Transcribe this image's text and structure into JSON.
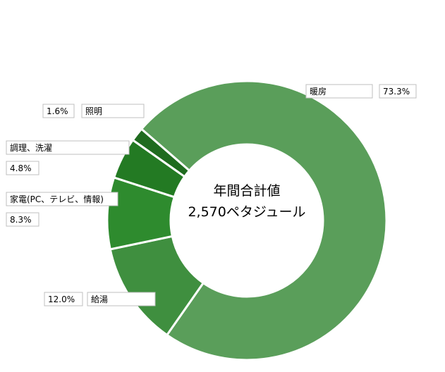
{
  "chart_data": {
    "type": "pie",
    "donut": true,
    "title": "",
    "center_label": {
      "line1": "年間合計値",
      "line2": "2,570ペタジュール"
    },
    "series": [
      {
        "name": "暖房",
        "value": 73.3,
        "value_label": "73.3%",
        "color": "#5a9e5a"
      },
      {
        "name": "給湯",
        "value": 12.0,
        "value_label": "12.0%",
        "color": "#3f8f3f"
      },
      {
        "name": "家電(PC、テレビ、情報)",
        "value": 8.3,
        "value_label": "8.3%",
        "color": "#2e8b2e"
      },
      {
        "name": "調理、洗濯",
        "value": 4.8,
        "value_label": "4.8%",
        "color": "#237a23"
      },
      {
        "name": "照明",
        "value": 1.6,
        "value_label": "1.6%",
        "color": "#1f6b1f"
      }
    ],
    "legend": "none"
  }
}
